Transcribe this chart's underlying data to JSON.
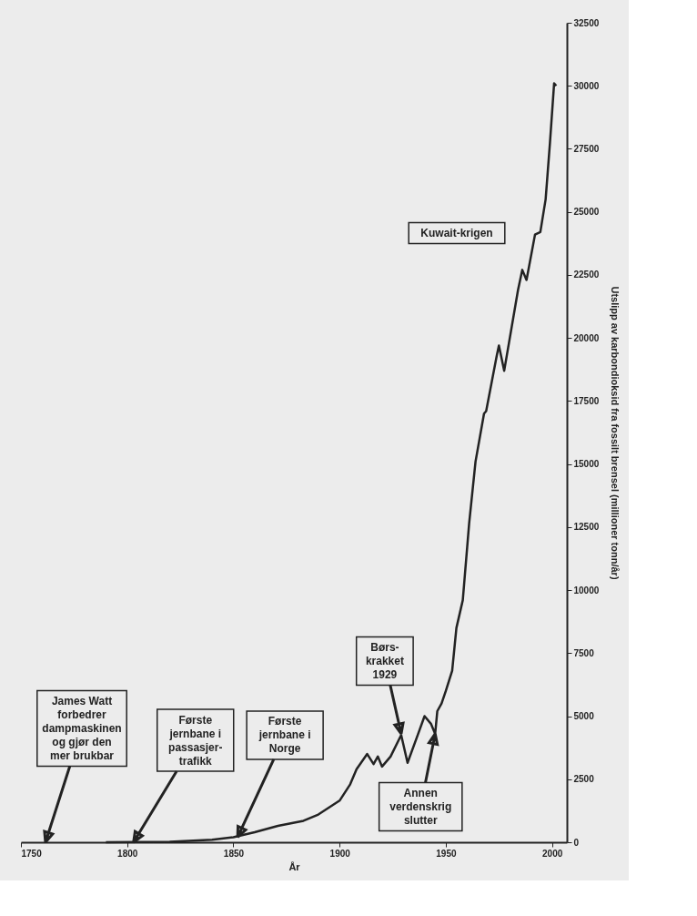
{
  "chart_data": {
    "type": "line",
    "xlabel": "År",
    "ylabel": "Utslipp av karbondioksid fra fossilt brensel (millioner tonn/år)",
    "x": [
      1790,
      1820,
      1840,
      1850,
      1860,
      1871,
      1883,
      1890,
      1900,
      1905,
      1908,
      1913,
      1916,
      1918,
      1920,
      1924,
      1929,
      1932,
      1937,
      1940,
      1943,
      1945,
      1946,
      1948,
      1950,
      1953,
      1955,
      1958,
      1961,
      1964,
      1968,
      1969,
      1974,
      1975,
      1977.5,
      1984,
      1986,
      1988,
      1992,
      1994.5,
      1997,
      1999,
      2001,
      2002
    ],
    "series": [
      {
        "color": "#222222",
        "values": [
          0,
          20,
          100,
          200,
          400,
          650,
          850,
          1100,
          1650,
          2300,
          2900,
          3500,
          3100,
          3400,
          3000,
          3400,
          4250,
          3150,
          4300,
          5000,
          4700,
          4300,
          5200,
          5500,
          6000,
          6800,
          8500,
          9600,
          12650,
          15100,
          17000,
          17100,
          19300,
          19700,
          18700,
          21900,
          22700,
          22300,
          24100,
          24200,
          25500,
          27700,
          30100,
          30000
        ]
      }
    ],
    "xlim": [
      1750,
      2007
    ],
    "xticks": [
      1750,
      1800,
      1850,
      1900,
      1950,
      2000
    ],
    "ylim": [
      0,
      32500
    ],
    "yticks": [
      0,
      2500,
      5000,
      7500,
      10000,
      12500,
      15000,
      17500,
      20000,
      22500,
      25000,
      27500,
      30000,
      32500
    ],
    "grid": false,
    "line_style": "solid",
    "annotations": [
      "James Watt\nforbedrer\ndampmaskinen\nog gjør den\nmer brukbar",
      {
        "text": "Første\njernbane i\npassasjer-\ntrafikk",
        "x": 1803,
        "y": 0
      },
      {
        "text": "Første\njernbane i\nNorge",
        "x": 1852,
        "y": 200
      },
      {
        "text": "Børs-\nkrakket\n1929",
        "x": 1929,
        "y": 4300
      },
      {
        "text": "Annen\nverdenskrig\nslutter",
        "x": 1945,
        "y": 4300
      },
      "Kuwait-krigen"
    ]
  }
}
